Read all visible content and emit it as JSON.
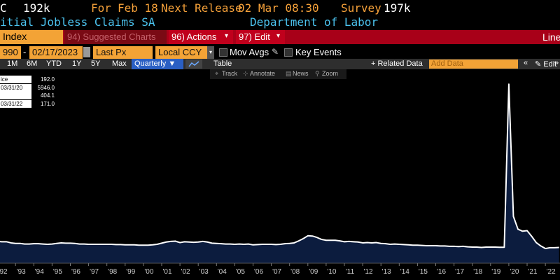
{
  "header": {
    "ticker": "C",
    "last": "192k",
    "for_label": "For",
    "for_date": "Feb 18",
    "next_release_label": "Next Release",
    "next_release": "02 Mar 08:30",
    "survey_label": "Survey",
    "survey": "197k"
  },
  "subtitle": {
    "name": "itial Jobless Claims SA",
    "source": "Department of Labor"
  },
  "menu": {
    "index": "Index",
    "suggested": "94) Suggested Charts",
    "actions": "96) Actions",
    "edit": "97) Edit",
    "line": "Line"
  },
  "controls": {
    "start": "990",
    "dash": "-",
    "end": "02/17/2023",
    "field": "Last Px",
    "currency": "Local CCY",
    "mov_avgs": "Mov Avgs",
    "key_events": "Key Events"
  },
  "ranges": [
    "1M",
    "6M",
    "YTD",
    "1Y",
    "5Y",
    "Max"
  ],
  "frequency": "Quarterly",
  "table": "Table",
  "related": "Related Data",
  "add_data": "Add Data",
  "edit": "Edit",
  "toolbar": [
    "Track",
    "Annotate",
    "News",
    "Zoom"
  ],
  "legend": [
    {
      "label": "ice",
      "value": "192.0"
    },
    {
      "label": "03/31/20",
      "value": "5946.0"
    },
    {
      "value": "404.1"
    },
    {
      "label": "03/31/22",
      "value": "171.0"
    }
  ],
  "chart_data": {
    "type": "area",
    "color": "#ffffff",
    "fill_color": "#0c1c3e",
    "x": [
      1992,
      1992.25,
      1992.5,
      1992.75,
      1993,
      1993.25,
      1993.5,
      1993.75,
      1994,
      1994.25,
      1994.5,
      1994.75,
      1995,
      1995.25,
      1995.5,
      1995.75,
      1996,
      1996.25,
      1996.5,
      1996.75,
      1997,
      1997.25,
      1997.5,
      1997.75,
      1998,
      1998.25,
      1998.5,
      1998.75,
      1999,
      1999.25,
      1999.5,
      1999.75,
      2000,
      2000.25,
      2000.5,
      2000.75,
      2001,
      2001.25,
      2001.5,
      2001.75,
      2002,
      2002.25,
      2002.5,
      2002.75,
      2003,
      2003.25,
      2003.5,
      2003.75,
      2004,
      2004.25,
      2004.5,
      2004.75,
      2005,
      2005.25,
      2005.5,
      2005.75,
      2006,
      2006.25,
      2006.5,
      2006.75,
      2007,
      2007.25,
      2007.5,
      2007.75,
      2008,
      2008.25,
      2008.5,
      2008.75,
      2009,
      2009.25,
      2009.5,
      2009.75,
      2010,
      2010.25,
      2010.5,
      2010.75,
      2011,
      2011.25,
      2011.5,
      2011.75,
      2012,
      2012.25,
      2012.5,
      2012.75,
      2013,
      2013.25,
      2013.5,
      2013.75,
      2014,
      2014.25,
      2014.5,
      2014.75,
      2015,
      2015.25,
      2015.5,
      2015.75,
      2016,
      2016.25,
      2016.5,
      2016.75,
      2017,
      2017.25,
      2017.5,
      2017.75,
      2018,
      2018.25,
      2018.5,
      2018.75,
      2019,
      2019.25,
      2019.5,
      2019.75,
      2020,
      2020.25,
      2020.5,
      2020.75,
      2021,
      2021.25,
      2021.5,
      2021.75,
      2022,
      2022.25,
      2022.5,
      2022.75
    ],
    "values": [
      420,
      410,
      410,
      370,
      350,
      350,
      330,
      330,
      340,
      340,
      330,
      320,
      330,
      350,
      370,
      360,
      360,
      350,
      330,
      330,
      320,
      320,
      320,
      320,
      320,
      320,
      310,
      310,
      300,
      300,
      300,
      290,
      290,
      290,
      300,
      320,
      360,
      400,
      420,
      430,
      380,
      410,
      400,
      390,
      400,
      420,
      400,
      360,
      350,
      340,
      330,
      330,
      320,
      330,
      320,
      330,
      300,
      310,
      320,
      320,
      320,
      310,
      320,
      340,
      350,
      370,
      440,
      520,
      620,
      610,
      560,
      490,
      460,
      460,
      460,
      440,
      410,
      420,
      410,
      400,
      370,
      380,
      370,
      380,
      350,
      340,
      320,
      330,
      320,
      310,
      300,
      290,
      290,
      280,
      270,
      270,
      270,
      260,
      260,
      250,
      250,
      240,
      250,
      230,
      220,
      220,
      210,
      220,
      220,
      220,
      215,
      215,
      5946,
      1300,
      850,
      780,
      800,
      600,
      380,
      260,
      171,
      200,
      200,
      210
    ],
    "xlim": [
      1992.15,
      2022.8
    ],
    "ylim": [
      0,
      6000
    ],
    "xticks": [
      {
        "value": 1992,
        "label": "'92"
      },
      {
        "value": 1993,
        "label": "'93"
      },
      {
        "value": 1994,
        "label": "'94"
      },
      {
        "value": 1995,
        "label": "'95"
      },
      {
        "value": 1996,
        "label": "'96"
      },
      {
        "value": 1997,
        "label": "'97"
      },
      {
        "value": 1998,
        "label": "'98"
      },
      {
        "value": 1999,
        "label": "'99"
      },
      {
        "value": 2000,
        "label": "'00"
      },
      {
        "value": 2001,
        "label": "'01"
      },
      {
        "value": 2002,
        "label": "'02"
      },
      {
        "value": 2003,
        "label": "'03"
      },
      {
        "value": 2004,
        "label": "'04"
      },
      {
        "value": 2005,
        "label": "'05"
      },
      {
        "value": 2006,
        "label": "'06"
      },
      {
        "value": 2007,
        "label": "'07"
      },
      {
        "value": 2008,
        "label": "'08"
      },
      {
        "value": 2009,
        "label": "'09"
      },
      {
        "value": 2010,
        "label": "'10"
      },
      {
        "value": 2011,
        "label": "'11"
      },
      {
        "value": 2012,
        "label": "'12"
      },
      {
        "value": 2013,
        "label": "'13"
      },
      {
        "value": 2014,
        "label": "'14"
      },
      {
        "value": 2015,
        "label": "'15"
      },
      {
        "value": 2016,
        "label": "'16"
      },
      {
        "value": 2017,
        "label": "'17"
      },
      {
        "value": 2018,
        "label": "'18"
      },
      {
        "value": 2019,
        "label": "'19"
      },
      {
        "value": 2020,
        "label": "'20"
      },
      {
        "value": 2021,
        "label": "'21"
      },
      {
        "value": 2022,
        "label": "'22"
      }
    ]
  }
}
